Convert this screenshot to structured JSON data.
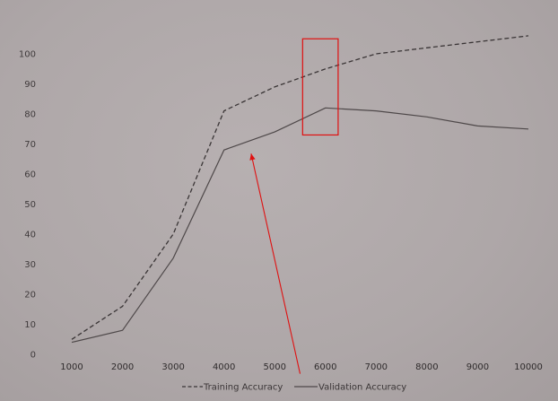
{
  "chart_data": {
    "type": "line",
    "title": "",
    "xlabel": "",
    "ylabel": "",
    "x": [
      1000,
      2000,
      3000,
      4000,
      5000,
      6000,
      7000,
      8000,
      9000,
      10000
    ],
    "x_tick_labels": [
      "1000",
      "2000",
      "3000",
      "4000",
      "5000",
      "6000",
      "7000",
      "8000",
      "9000",
      "10000"
    ],
    "y_tick_labels": [
      "0",
      "10",
      "20",
      "30",
      "40",
      "50",
      "60",
      "70",
      "80",
      "90",
      "100"
    ],
    "ylim": [
      0,
      100
    ],
    "grid": false,
    "legend_position": "bottom",
    "series": [
      {
        "name": "Training Accuracy",
        "style": "dashed",
        "color": "#3a3536",
        "values": [
          5,
          16,
          40,
          81,
          89,
          95,
          100,
          102,
          104,
          106
        ]
      },
      {
        "name": "Validation Accuracy",
        "style": "solid",
        "color": "#4e4849",
        "values": [
          4,
          8,
          32,
          68,
          74,
          82,
          81,
          79,
          76,
          75
        ]
      }
    ],
    "annotations": {
      "highlight_box": {
        "x_from": 5550,
        "x_to": 6250,
        "y_from": 73,
        "y_to": 105,
        "color": "#e01010"
      },
      "arrow": {
        "from": [
          5500,
          1
        ],
        "to": [
          4500,
          68
        ],
        "color": "#e01010"
      }
    }
  }
}
